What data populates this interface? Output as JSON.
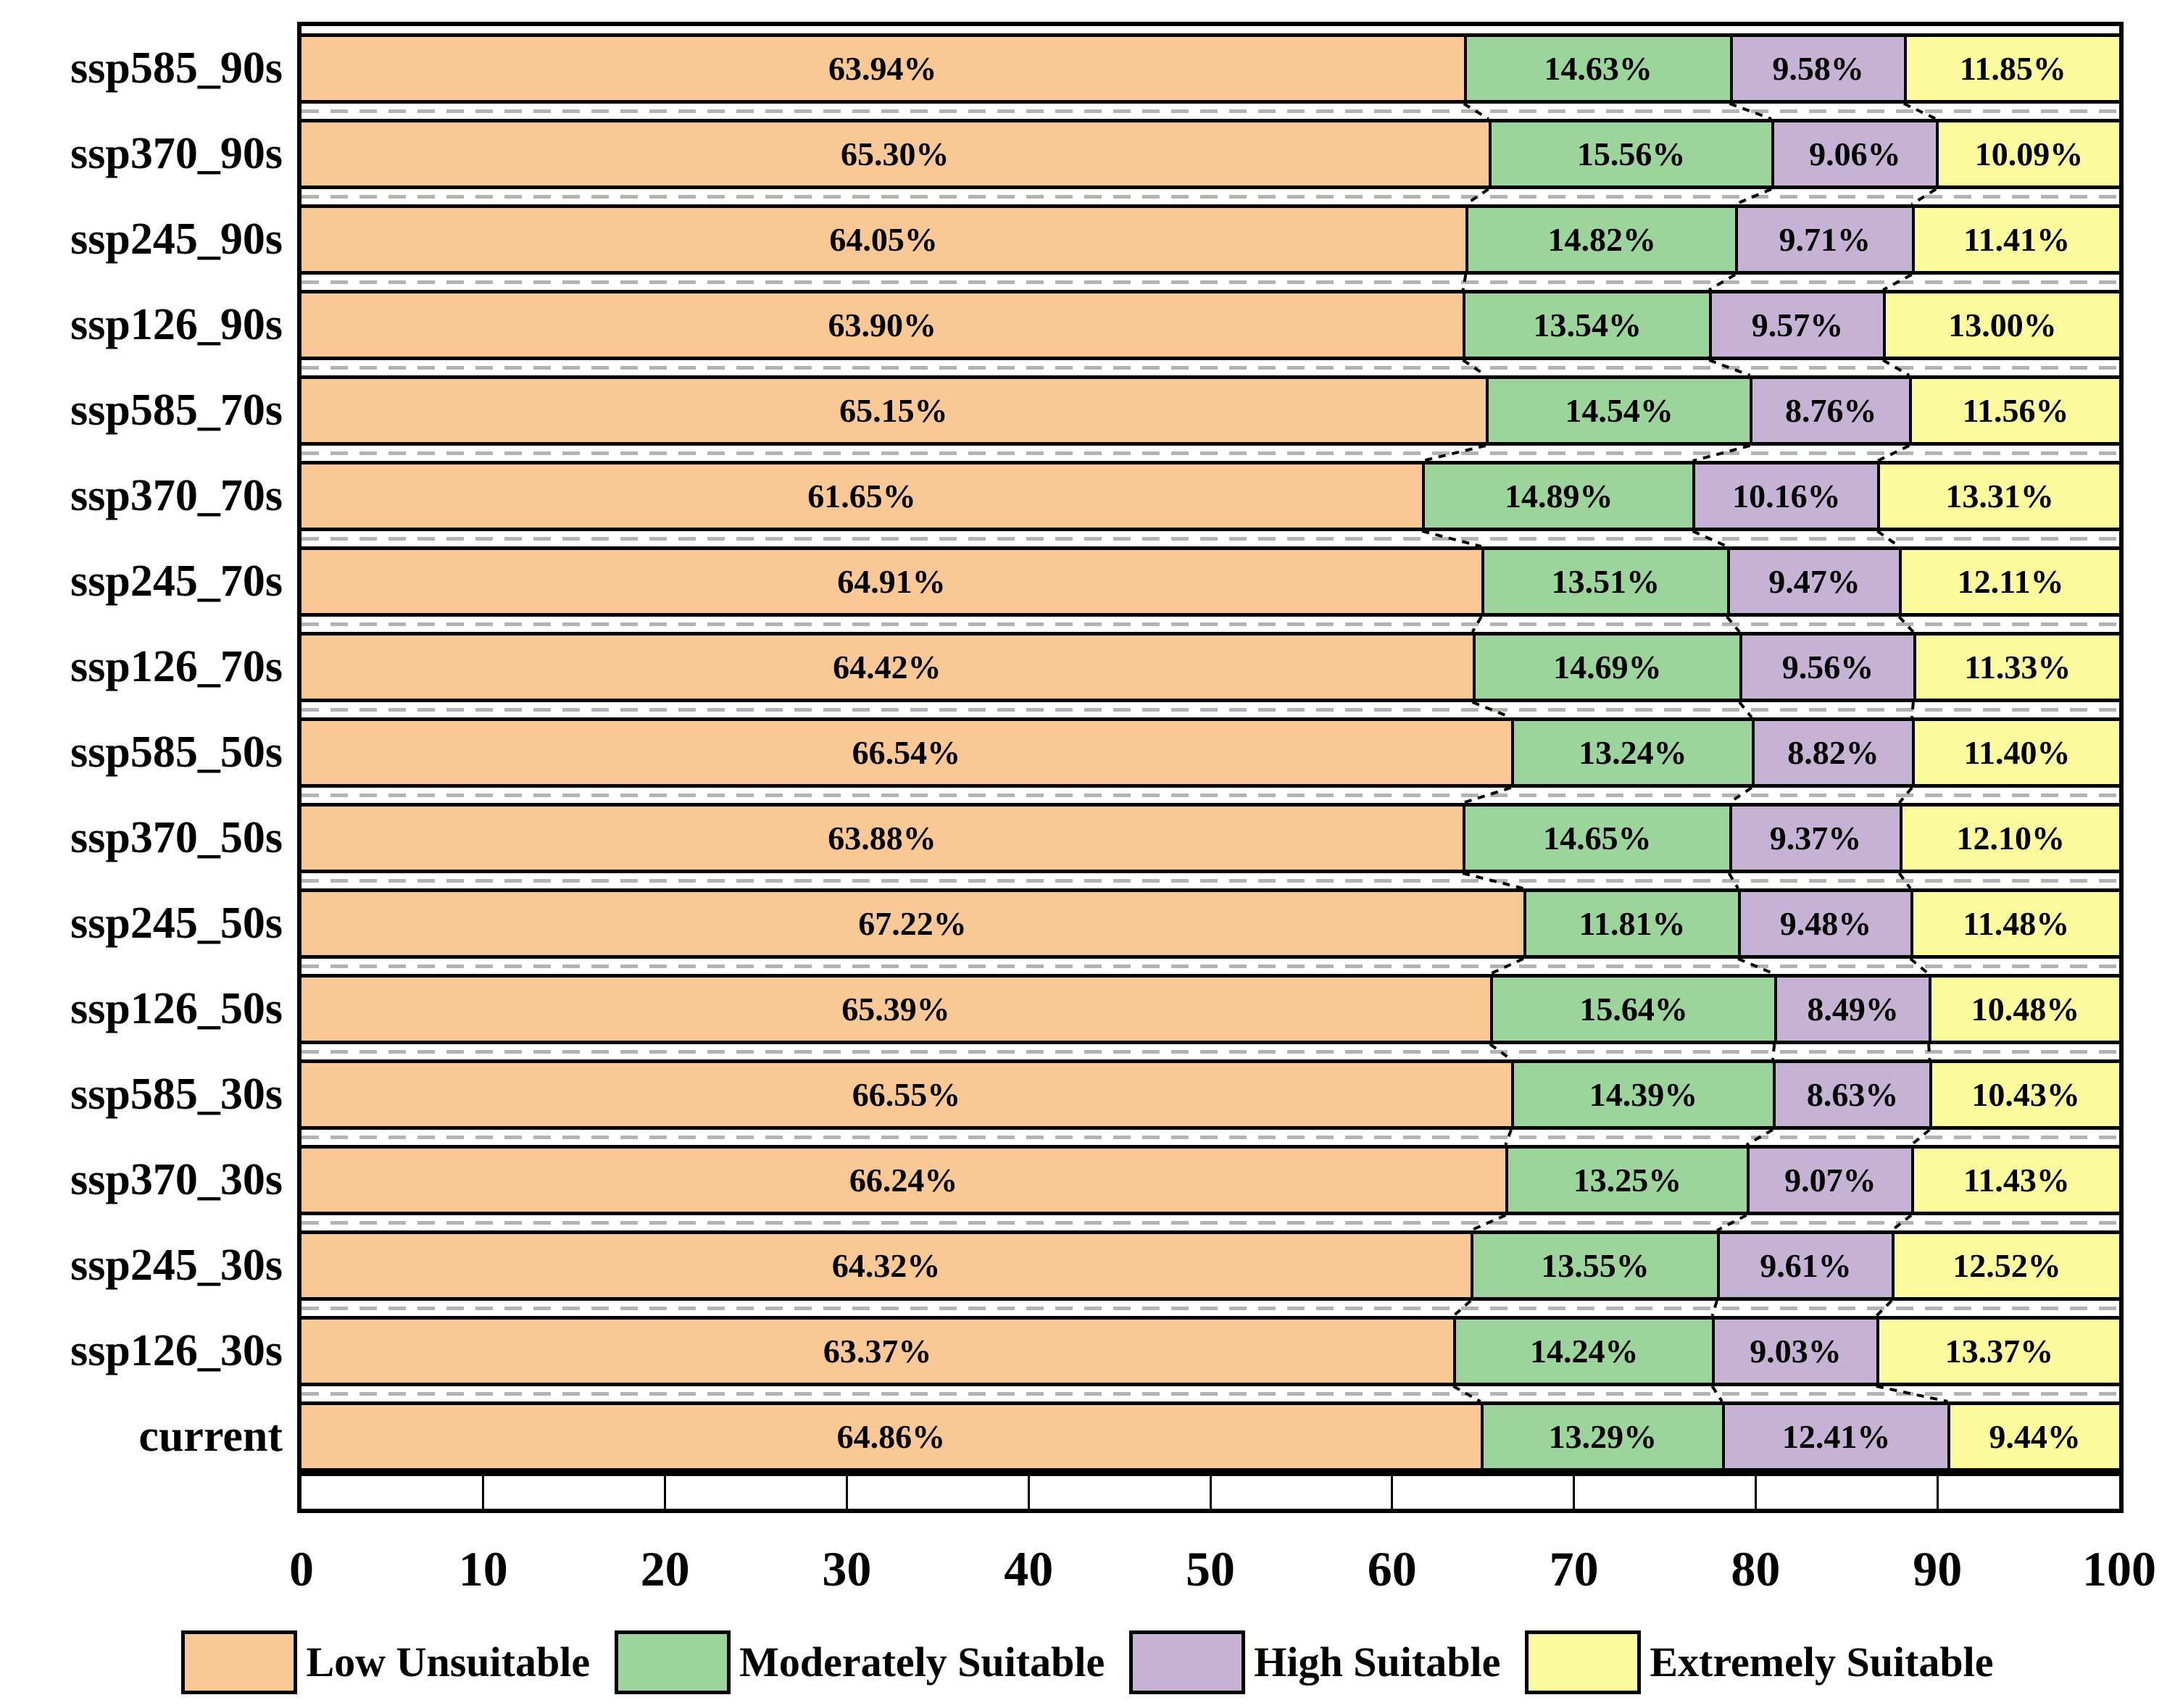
{
  "chart_data": {
    "type": "bar",
    "stacked": true,
    "orientation": "horizontal",
    "categories": [
      "ssp585_90s",
      "ssp370_90s",
      "ssp245_90s",
      "ssp126_90s",
      "ssp585_70s",
      "ssp370_70s",
      "ssp245_70s",
      "ssp126_70s",
      "ssp585_50s",
      "ssp370_50s",
      "ssp245_50s",
      "ssp126_50s",
      "ssp585_30s",
      "ssp370_30s",
      "ssp245_30s",
      "ssp126_30s",
      "current"
    ],
    "series": [
      {
        "name": "Low Unsuitable",
        "color": "#FAC894",
        "values": [
          63.94,
          65.3,
          64.05,
          63.9,
          65.15,
          61.65,
          64.91,
          64.42,
          66.54,
          63.88,
          67.22,
          65.39,
          66.55,
          66.24,
          64.32,
          63.37,
          64.86
        ]
      },
      {
        "name": "Moderately Suitable",
        "color": "#9CD59B",
        "values": [
          14.63,
          15.56,
          14.82,
          13.54,
          14.54,
          14.89,
          13.51,
          14.69,
          13.24,
          14.65,
          11.81,
          15.64,
          14.39,
          13.25,
          13.55,
          14.24,
          13.29
        ]
      },
      {
        "name": "High Suitable",
        "color": "#C5B2D5",
        "values": [
          9.58,
          9.06,
          9.71,
          9.57,
          8.76,
          10.16,
          9.47,
          9.56,
          8.82,
          9.37,
          9.48,
          8.49,
          8.63,
          9.07,
          9.61,
          9.03,
          12.41
        ]
      },
      {
        "name": "Extremely Suitable",
        "color": "#FBFB9D",
        "values": [
          11.85,
          10.09,
          11.41,
          13.0,
          11.56,
          13.31,
          12.11,
          11.33,
          11.4,
          12.1,
          11.48,
          10.48,
          10.43,
          11.43,
          12.52,
          13.37,
          9.44
        ]
      }
    ],
    "x_ticks": [
      0,
      10,
      20,
      30,
      40,
      50,
      60,
      70,
      80,
      90,
      100
    ],
    "xlim": [
      0,
      100
    ],
    "value_label_suffix": "%",
    "legend_position": "bottom",
    "grid": "dashed-horizontal-between-rows"
  },
  "colors": {
    "bar_border": "#000000",
    "row_separator_dash": "#b3b3b3",
    "connector_line": "#000000",
    "background": "#ffffff"
  }
}
